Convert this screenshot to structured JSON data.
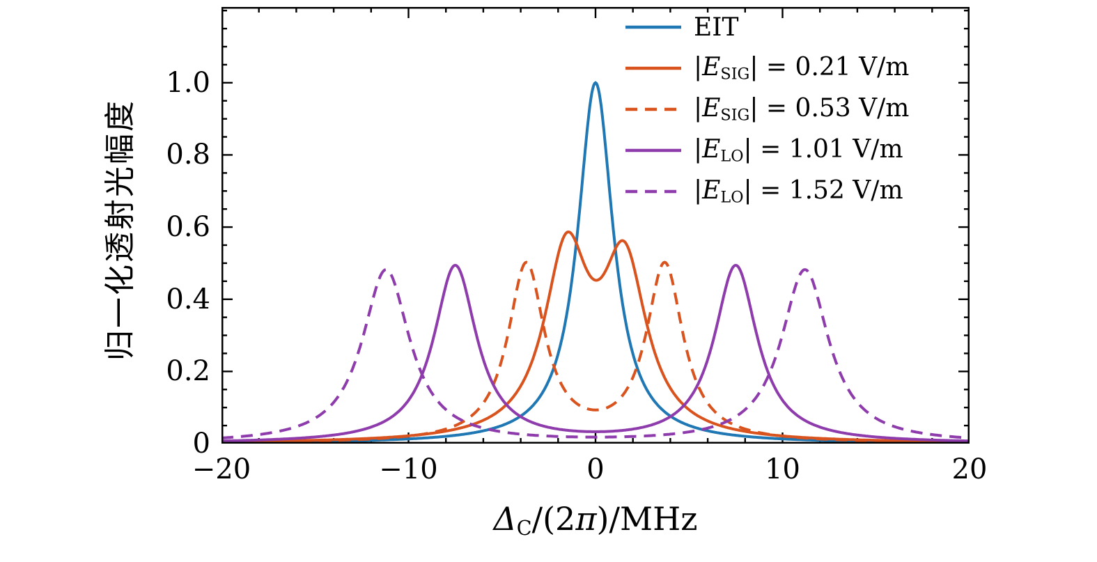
{
  "figure": {
    "background": "#ffffff",
    "frame_color": "#000000"
  },
  "axes": {
    "x": {
      "min": -20,
      "max": 20,
      "tick_values": [
        -20,
        -10,
        0,
        10,
        20
      ],
      "tick_labels": [
        "−20",
        "−10",
        "0",
        "10",
        "20"
      ],
      "minor_step": 2,
      "label_var": "Δ",
      "label_sub": "C",
      "label_mid": "/(2",
      "label_pi": "π",
      "label_tail": ")/MHz"
    },
    "y": {
      "min": 0,
      "max": 1.21,
      "tick_values": [
        0,
        0.2,
        0.4,
        0.6,
        0.8,
        1.0
      ],
      "tick_labels": [
        "0",
        "0.2",
        "0.4",
        "0.6",
        "0.8",
        "1.0"
      ],
      "minor_step": 0.05,
      "label": "归一化透射光幅度"
    }
  },
  "chart_data": {
    "type": "line",
    "title": "",
    "xlabel": "Δ_C/(2π)/MHz",
    "ylabel": "归一化透射光幅度",
    "xlim": [
      -20,
      20
    ],
    "ylim": [
      0,
      1.21
    ],
    "grid": false,
    "legend_position": "upper right, no frame",
    "curve_model": "sum of Lorentzian peaks: y = Σ A·w²/((x−c)²+w²)",
    "series": [
      {
        "name": "EIT",
        "color": "#1f77b4",
        "dash": "solid",
        "peaks": [
          {
            "center": 0.0,
            "amplitude": 1.0,
            "hwhm": 1.15
          }
        ],
        "peak_positions_MHz": [
          0.0
        ],
        "peak_heights": [
          1.0
        ]
      },
      {
        "name": "|E_SIG| = 0.21 V/m",
        "color": "#d9531e",
        "dash": "solid",
        "peaks": [
          {
            "center": -1.55,
            "amplitude": 0.5,
            "hwhm": 1.45
          },
          {
            "center": 1.55,
            "amplitude": 0.47,
            "hwhm": 1.45
          }
        ],
        "peak_positions_MHz": [
          -1.5,
          1.6
        ],
        "peak_heights": [
          0.58,
          0.55
        ],
        "center_dip": 0.46
      },
      {
        "name": "|E_SIG| = 0.53 V/m",
        "color": "#d9531e",
        "dash": "dashed",
        "peaks": [
          {
            "center": -3.7,
            "amplitude": 0.49,
            "hwhm": 1.2
          },
          {
            "center": 3.7,
            "amplitude": 0.49,
            "hwhm": 1.2
          }
        ],
        "peak_positions_MHz": [
          -3.7,
          3.7
        ],
        "peak_heights": [
          0.51,
          0.51
        ],
        "center_dip": 0.08
      },
      {
        "name": "|E_LO| = 1.01 V/m",
        "color": "#8e3bac",
        "dash": "solid",
        "peaks": [
          {
            "center": -7.5,
            "amplitude": 0.49,
            "hwhm": 1.4
          },
          {
            "center": 7.5,
            "amplitude": 0.49,
            "hwhm": 1.4
          }
        ],
        "peak_positions_MHz": [
          -7.5,
          7.5
        ],
        "peak_heights": [
          0.5,
          0.5
        ]
      },
      {
        "name": "|E_LO| = 1.52 V/m",
        "color": "#8e3bac",
        "dash": "dashed",
        "peaks": [
          {
            "center": -11.2,
            "amplitude": 0.48,
            "hwhm": 1.55
          },
          {
            "center": 11.2,
            "amplitude": 0.48,
            "hwhm": 1.55
          }
        ],
        "peak_positions_MHz": [
          -11.2,
          11.2
        ],
        "peak_heights": [
          0.49,
          0.49
        ]
      }
    ]
  },
  "legend": {
    "items": [
      {
        "series": 0,
        "lead": "",
        "var": "",
        "sub": "",
        "tail": "EIT"
      },
      {
        "series": 1,
        "lead": "|",
        "var": "E",
        "sub": "SIG",
        "tail": "| = 0.21 V/m"
      },
      {
        "series": 2,
        "lead": "|",
        "var": "E",
        "sub": "SIG",
        "tail": "| = 0.53 V/m"
      },
      {
        "series": 3,
        "lead": "|",
        "var": "E",
        "sub": "LO",
        "tail": "| = 1.01 V/m"
      },
      {
        "series": 4,
        "lead": "|",
        "var": "E",
        "sub": "LO",
        "tail": "| = 1.52 V/m"
      }
    ]
  }
}
